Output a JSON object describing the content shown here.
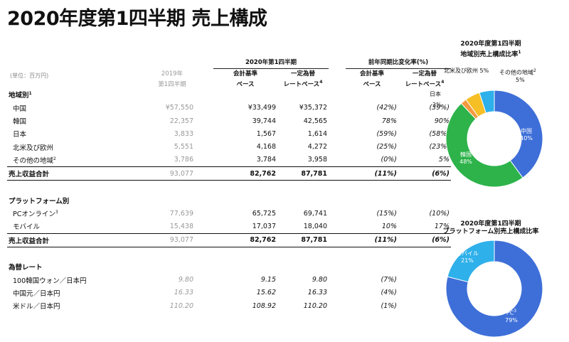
{
  "title": "2020年度第1四半期 売上構成",
  "unit_label": "(単位：百万円)",
  "header": {
    "group1": "2020年第1四半期",
    "group2": "前年同期比変化率(%)",
    "prev_year_l1": "2019年",
    "prev_year_l2": "第1四半期",
    "acct_l1": "会計基準",
    "acct_l2": "ベース",
    "const_l1": "一定為替",
    "const_l2": "レートベース",
    "const_sup": "4"
  },
  "region_section": {
    "title": "地域別",
    "sup": "1"
  },
  "region_rows": [
    {
      "label": "中国",
      "sup": "",
      "prev": "¥57,550",
      "acct": "¥33,499",
      "const": "¥35,372",
      "chg_acct": "(42%)",
      "chg_const": "(39%)"
    },
    {
      "label": "韓国",
      "sup": "",
      "prev": "22,357",
      "acct": "39,744",
      "const": "42,565",
      "chg_acct": "78%",
      "chg_const": "90%"
    },
    {
      "label": "日本",
      "sup": "",
      "prev": "3,833",
      "acct": "1,567",
      "const": "1,614",
      "chg_acct": "(59%)",
      "chg_const": "(58%)"
    },
    {
      "label": "北米及び欧州",
      "sup": "",
      "prev": "5,551",
      "acct": "4,168",
      "const": "4,272",
      "chg_acct": "(25%)",
      "chg_const": "(23%)"
    },
    {
      "label": "その他の地域",
      "sup": "2",
      "prev": "3,786",
      "acct": "3,784",
      "const": "3,958",
      "chg_acct": "(0%)",
      "chg_const": "5%"
    }
  ],
  "region_total": {
    "label": "売上収益合計",
    "prev": "93,077",
    "acct": "82,762",
    "const": "87,781",
    "chg_acct": "(11%)",
    "chg_const": "(6%)"
  },
  "platform_section": {
    "title": "プラットフォーム別"
  },
  "platform_rows": [
    {
      "label": "PCオンライン",
      "sup": "3",
      "prev": "77,639",
      "acct": "65,725",
      "const": "69,741",
      "chg_acct": "(15%)",
      "chg_const": "(10%)"
    },
    {
      "label": "モバイル",
      "sup": "",
      "prev": "15,438",
      "acct": "17,037",
      "const": "18,040",
      "chg_acct": "10%",
      "chg_const": "17%"
    }
  ],
  "platform_total": {
    "label": "売上収益合計",
    "prev": "93,077",
    "acct": "82,762",
    "const": "87,781",
    "chg_acct": "(11%)",
    "chg_const": "(6%)"
  },
  "fx_section": {
    "title": "為替レート"
  },
  "fx_rows": [
    {
      "label": "100韓国ウォン／日本円",
      "prev": "9.80",
      "acct": "9.15",
      "const": "9.80",
      "chg_acct": "(7%)"
    },
    {
      "label": "中国元／日本円",
      "prev": "16.33",
      "acct": "15.62",
      "const": "16.33",
      "chg_acct": "(4%)"
    },
    {
      "label": "米ドル／日本円",
      "prev": "110.20",
      "acct": "108.92",
      "const": "110.20",
      "chg_acct": "(1%)"
    }
  ],
  "chart_data": [
    {
      "type": "pie",
      "title_l1": "2020年度第1四半期",
      "title_l2": "地域別売上構成比率",
      "title_sup": "1",
      "slices": [
        {
          "name": "中国",
          "value": 40,
          "label": "40%",
          "color": "#3e6fd8"
        },
        {
          "name": "韓国",
          "value": 48,
          "label": "48%",
          "color": "#2db34a"
        },
        {
          "name": "日本",
          "value": 2,
          "label": "2%",
          "color": "#f39a40"
        },
        {
          "name": "北米及び欧州",
          "value": 5,
          "label": "5%",
          "color": "#f7bf26"
        },
        {
          "name": "その他の地域",
          "value": 5,
          "label": "5%",
          "color": "#2eb0ea"
        }
      ],
      "extra_labels": {
        "na_eu": "北米及び欧州 5%",
        "other": "その他の地域",
        "other_sup": "2",
        "other_pct": "5%"
      }
    },
    {
      "type": "pie",
      "title_l1": "2020年度第1四半期",
      "title_l2": "プラットフォーム別売上構成比率",
      "slices": [
        {
          "name": "PC",
          "value": 79,
          "label": "79%",
          "sup": "3",
          "color": "#3e6fd8"
        },
        {
          "name": "モバイル",
          "value": 21,
          "label": "21%",
          "color": "#2eb0ea"
        }
      ]
    }
  ]
}
